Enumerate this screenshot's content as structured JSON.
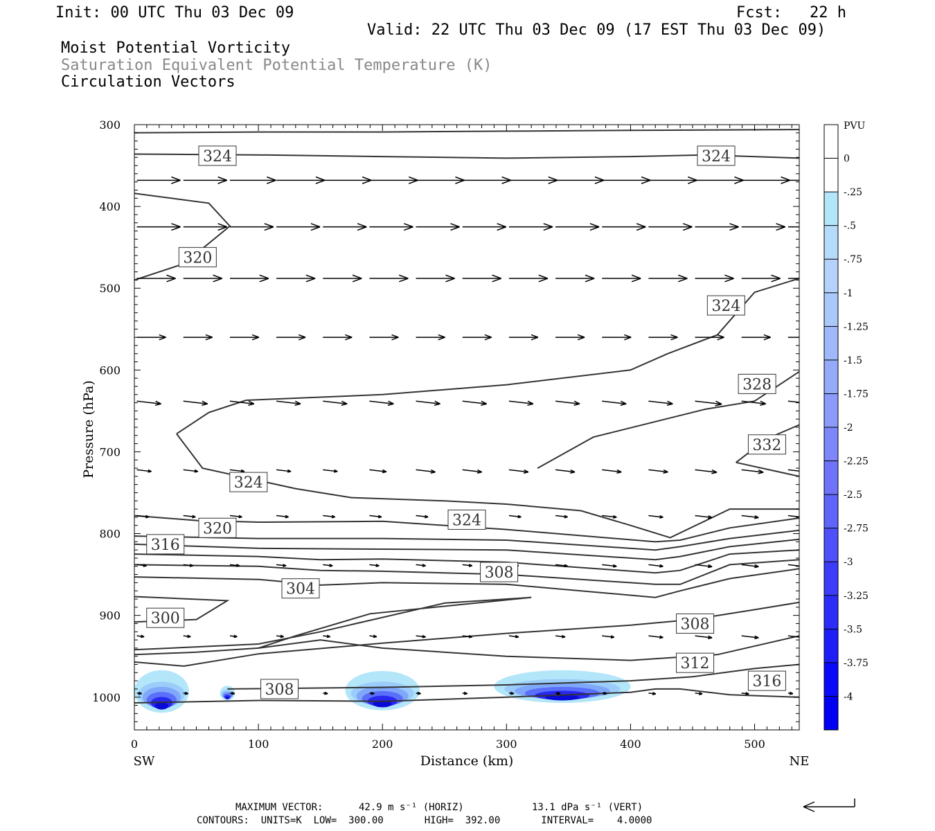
{
  "header": {
    "init": "Init: 00 UTC Thu 03 Dec 09",
    "fcst": "Fcst:   22 h",
    "valid": "Valid: 22 UTC Thu 03 Dec 09 (17 EST Thu 03 Dec 09)",
    "field1": "Moist Potential Vorticity",
    "field2": "Saturation Equivalent Potential Temperature (K)",
    "field3": "Circulation Vectors",
    "field2_color": "#888888"
  },
  "footer": {
    "max_vector_label": "MAXIMUM VECTOR:",
    "max_vector_horiz": "42.9 m s⁻¹ (HORIZ)",
    "max_vector_vert": "13.1 dPa s⁻¹ (VERT)",
    "contours_line": "CONTOURS:  UNITS=K  LOW=  300.00       HIGH=  392.00       INTERVAL=    4.0000"
  },
  "chart_data": {
    "type": "cross-section",
    "xlabel": "Distance (km)",
    "ylabel": "Pressure (hPa)",
    "xlim": [
      0,
      536
    ],
    "ylim": [
      300,
      1040
    ],
    "x_ticks": [
      0,
      100,
      200,
      300,
      400,
      500
    ],
    "y_ticks": [
      300,
      400,
      500,
      600,
      700,
      800,
      900,
      1000
    ],
    "left_end_label": "SW",
    "right_end_label": "NE",
    "colorbar": {
      "title": "PVU",
      "labels": [
        "0",
        "-.25",
        "-.5",
        "-.75",
        "-1",
        "-1.25",
        "-1.5",
        "-1.75",
        "-2",
        "-2.25",
        "-2.5",
        "-2.75",
        "-3",
        "-3.25",
        "-3.5",
        "-3.75",
        "-4"
      ],
      "colors": [
        "#ffffff",
        "#ffffff",
        "#b4e6fa",
        "#b4dcfa",
        "#b4d2fa",
        "#aac8fa",
        "#a0b9fa",
        "#96aafa",
        "#8c9bfa",
        "#7d87fa",
        "#6e73fa",
        "#5f64fa",
        "#5050fa",
        "#3c3cfa",
        "#2d2dfa",
        "#1e1efa",
        "#0a0afa",
        "#0000f5"
      ]
    },
    "contour_labels": [
      {
        "v": "324",
        "x": 67,
        "p": 338
      },
      {
        "v": "324",
        "x": 469,
        "p": 338
      },
      {
        "v": "320",
        "x": 51,
        "p": 462
      },
      {
        "v": "324",
        "x": 477,
        "p": 521
      },
      {
        "v": "328",
        "x": 502,
        "p": 617
      },
      {
        "v": "332",
        "x": 510,
        "p": 691
      },
      {
        "v": "324",
        "x": 92,
        "p": 737
      },
      {
        "v": "324",
        "x": 268,
        "p": 783
      },
      {
        "v": "320",
        "x": 67,
        "p": 793
      },
      {
        "v": "316",
        "x": 25,
        "p": 813
      },
      {
        "v": "308",
        "x": 294,
        "p": 847
      },
      {
        "v": "304",
        "x": 134,
        "p": 867
      },
      {
        "v": "300",
        "x": 25,
        "p": 903
      },
      {
        "v": "308",
        "x": 452,
        "p": 910
      },
      {
        "v": "312",
        "x": 452,
        "p": 958
      },
      {
        "v": "316",
        "x": 510,
        "p": 980
      },
      {
        "v": "308",
        "x": 117,
        "p": 990
      }
    ],
    "contours": [
      [
        [
          0,
          310
        ],
        [
          100,
          309
        ],
        [
          200,
          309
        ],
        [
          300,
          308
        ],
        [
          400,
          307
        ],
        [
          536,
          306
        ]
      ],
      [
        [
          0,
          336
        ],
        [
          100,
          337
        ],
        [
          200,
          339
        ],
        [
          300,
          341
        ],
        [
          400,
          339
        ],
        [
          460,
          337
        ],
        [
          536,
          341
        ]
      ],
      [
        [
          0,
          384
        ],
        [
          60,
          396
        ],
        [
          77,
          424
        ],
        [
          40,
          470
        ],
        [
          0,
          490
        ]
      ],
      [
        [
          34,
          678
        ],
        [
          60,
          652
        ],
        [
          90,
          637
        ],
        [
          200,
          630
        ],
        [
          300,
          618
        ],
        [
          400,
          600
        ],
        [
          430,
          580
        ],
        [
          470,
          557
        ],
        [
          500,
          505
        ],
        [
          536,
          488
        ]
      ],
      [
        [
          34,
          678
        ],
        [
          55,
          720
        ],
        [
          130,
          745
        ],
        [
          175,
          756
        ],
        [
          250,
          760
        ],
        [
          300,
          764
        ],
        [
          360,
          772
        ],
        [
          400,
          790
        ],
        [
          432,
          805
        ],
        [
          480,
          770
        ],
        [
          536,
          770
        ]
      ],
      [
        [
          325,
          720
        ],
        [
          370,
          682
        ],
        [
          460,
          648
        ],
        [
          500,
          638
        ],
        [
          536,
          602
        ]
      ],
      [
        [
          485,
          713
        ],
        [
          510,
          684
        ],
        [
          536,
          667
        ]
      ],
      [
        [
          485,
          713
        ],
        [
          536,
          730
        ]
      ],
      [
        [
          0,
          778
        ],
        [
          50,
          784
        ],
        [
          100,
          786
        ],
        [
          200,
          785
        ],
        [
          300,
          795
        ],
        [
          420,
          810
        ],
        [
          440,
          808
        ],
        [
          480,
          793
        ],
        [
          536,
          781
        ]
      ],
      [
        [
          0,
          803
        ],
        [
          100,
          806
        ],
        [
          200,
          806
        ],
        [
          300,
          808
        ],
        [
          420,
          820
        ],
        [
          440,
          816
        ],
        [
          480,
          806
        ],
        [
          536,
          796
        ]
      ],
      [
        [
          0,
          813
        ],
        [
          100,
          818
        ],
        [
          200,
          819
        ],
        [
          300,
          820
        ],
        [
          420,
          832
        ],
        [
          440,
          828
        ],
        [
          480,
          816
        ],
        [
          536,
          807
        ]
      ],
      [
        [
          0,
          825
        ],
        [
          100,
          828
        ],
        [
          150,
          832
        ],
        [
          200,
          831
        ],
        [
          300,
          835
        ],
        [
          420,
          848
        ],
        [
          440,
          845
        ],
        [
          480,
          825
        ],
        [
          536,
          820
        ]
      ],
      [
        [
          0,
          838
        ],
        [
          100,
          840
        ],
        [
          150,
          845
        ],
        [
          200,
          846
        ],
        [
          300,
          850
        ],
        [
          420,
          862
        ],
        [
          440,
          862
        ],
        [
          480,
          838
        ],
        [
          536,
          832
        ]
      ],
      [
        [
          0,
          853
        ],
        [
          100,
          856
        ],
        [
          150,
          863
        ],
        [
          200,
          860
        ],
        [
          300,
          862
        ],
        [
          420,
          878
        ],
        [
          440,
          870
        ],
        [
          480,
          855
        ],
        [
          536,
          843
        ]
      ],
      [
        [
          0,
          877
        ],
        [
          75,
          882
        ],
        [
          50,
          905
        ],
        [
          0,
          908
        ]
      ],
      [
        [
          0,
          942
        ],
        [
          100,
          935
        ],
        [
          150,
          920
        ],
        [
          250,
          885
        ],
        [
          320,
          878
        ],
        [
          190,
          898
        ],
        [
          130,
          925
        ],
        [
          100,
          940
        ],
        [
          50,
          945
        ],
        [
          0,
          948
        ]
      ],
      [
        [
          0,
          957
        ],
        [
          40,
          962
        ],
        [
          100,
          947
        ],
        [
          200,
          934
        ],
        [
          300,
          922
        ],
        [
          400,
          912
        ],
        [
          450,
          905
        ],
        [
          500,
          893
        ],
        [
          536,
          884
        ]
      ],
      [
        [
          100,
          940
        ],
        [
          150,
          930
        ],
        [
          200,
          940
        ],
        [
          300,
          950
        ],
        [
          400,
          955
        ],
        [
          470,
          948
        ],
        [
          536,
          925
        ]
      ],
      [
        [
          75,
          990
        ],
        [
          200,
          988
        ],
        [
          300,
          985
        ],
        [
          400,
          980
        ],
        [
          450,
          975
        ],
        [
          500,
          965
        ],
        [
          536,
          960
        ]
      ],
      [
        [
          0,
          1007
        ],
        [
          100,
          1004
        ],
        [
          200,
          1005
        ],
        [
          300,
          1000
        ],
        [
          400,
          994
        ],
        [
          420,
          990
        ],
        [
          440,
          990
        ],
        [
          480,
          997
        ],
        [
          536,
          1000
        ]
      ]
    ],
    "pv_blobs": [
      {
        "cx": 22,
        "p": 993,
        "rx": 22,
        "rp": 26
      },
      {
        "cx": 200,
        "p": 992,
        "rx": 30,
        "rp": 24
      },
      {
        "cx": 345,
        "p": 987,
        "rx": 55,
        "rp": 20
      },
      {
        "cx": 75,
        "p": 995,
        "rx": 6,
        "rp": 9
      }
    ],
    "vector_rows": [
      {
        "p": 368,
        "u": [
          0.9,
          0.9,
          0.95,
          1,
          1,
          1,
          1,
          1,
          1,
          1,
          1,
          1,
          1,
          1,
          0.8
        ]
      },
      {
        "p": 425,
        "u": [
          0.9,
          0.9,
          0.9,
          0.9,
          0.9,
          0.9,
          0.9,
          0.9,
          0.9,
          0.9,
          0.9,
          0.9,
          0.9,
          0.9,
          0.9
        ]
      },
      {
        "p": 488,
        "u": [
          0.8,
          0.8,
          0.8,
          0.8,
          0.8,
          0.8,
          0.8,
          0.8,
          0.8,
          0.8,
          0.8,
          0.8,
          0.8,
          0.8,
          0.8
        ]
      },
      {
        "p": 560,
        "u": [
          0.6,
          0.6,
          0.6,
          0.6,
          0.6,
          0.6,
          0.6,
          0.6,
          0.6,
          0.6,
          0.6,
          0.6,
          0.6,
          0.6,
          0.6
        ]
      },
      {
        "p": 638,
        "u": [
          0.5,
          0.5,
          0.5,
          0.5,
          0.5,
          0.5,
          0.5,
          0.5,
          0.5,
          0.5,
          0.5,
          0.5,
          0.55,
          0.5,
          0.5
        ]
      },
      {
        "p": 722,
        "u": [
          0.3,
          0.3,
          0.3,
          0.3,
          0.3,
          0.35,
          0.4,
          0.4,
          0.4,
          0.4,
          0.4,
          0.4,
          0.45,
          0.45,
          0.45
        ]
      },
      {
        "p": 778,
        "u": [
          0.25,
          0.25,
          0.25,
          0.25,
          0.25,
          0.25,
          0.25,
          0.25,
          0.25,
          0.25,
          0.3,
          0.3,
          0.35,
          0.35,
          0.35
        ]
      },
      {
        "p": 838,
        "u": [
          0.2,
          0.2,
          0.2,
          0.2,
          0.2,
          0.2,
          0.2,
          0.2,
          0.2,
          0.25,
          0.3,
          0.3,
          0.35,
          0.35,
          0.3
        ]
      },
      {
        "p": 925,
        "u": [
          0.15,
          0.15,
          0.15,
          0.15,
          0.15,
          0.15,
          0.2,
          0.2,
          0.2,
          0.2,
          0.25,
          0.3,
          0.35,
          0.35,
          0.3
        ]
      },
      {
        "p": 995,
        "u": [
          0.1,
          0.1,
          0.1,
          0.1,
          0.1,
          0.1,
          0.1,
          0.1,
          0.1,
          0.1,
          0.1,
          0.15,
          0.15,
          0.15,
          0.1
        ]
      }
    ]
  }
}
